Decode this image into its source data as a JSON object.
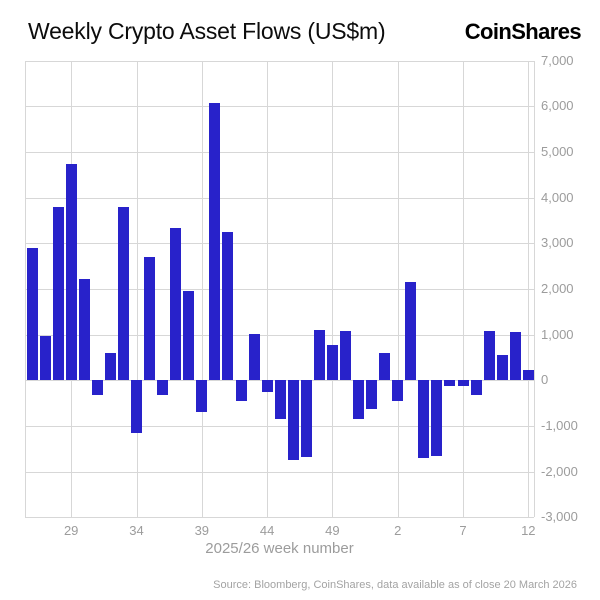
{
  "page": {
    "title": "Weekly Crypto Asset Flows (US$m)",
    "logo": "CoinShares",
    "source": "Source: Bloomberg, CoinShares, data available as of close 20 March 2026"
  },
  "chart_data": {
    "type": "bar",
    "title": "Weekly Crypto Asset Flows (US$m)",
    "xlabel": "2025/26 week number",
    "ylabel": "",
    "ylim": [
      -3000,
      7000
    ],
    "grid": true,
    "legend_position": "none",
    "bar_color": "#2822ca",
    "gridline_color": "#d7d7d7",
    "tick_label_color": "#9c9c9c",
    "weeks": [
      26,
      27,
      28,
      29,
      30,
      31,
      32,
      33,
      34,
      35,
      36,
      37,
      38,
      39,
      40,
      41,
      42,
      43,
      44,
      45,
      46,
      47,
      48,
      49,
      50,
      51,
      52,
      1,
      2,
      3,
      4,
      5,
      6,
      7,
      8,
      9,
      10,
      11,
      12
    ],
    "values": [
      2900,
      980,
      3800,
      4750,
      2210,
      -320,
      590,
      3800,
      -1150,
      2710,
      -320,
      3340,
      1950,
      -700,
      6080,
      3260,
      -450,
      1010,
      -250,
      -850,
      -1750,
      -1690,
      1110,
      770,
      1090,
      -840,
      -640,
      590,
      -460,
      2160,
      -1710,
      -1660,
      -130,
      -130,
      -330,
      1080,
      550,
      1070,
      230
    ],
    "yticks": [
      {
        "v": 7000,
        "label": "7,000"
      },
      {
        "v": 6000,
        "label": "6,000"
      },
      {
        "v": 5000,
        "label": "5,000"
      },
      {
        "v": 4000,
        "label": "4,000"
      },
      {
        "v": 3000,
        "label": "3,000"
      },
      {
        "v": 2000,
        "label": "2,000"
      },
      {
        "v": 1000,
        "label": "1,000"
      },
      {
        "v": 0,
        "label": "0"
      },
      {
        "v": -1000,
        "label": "-1,000"
      },
      {
        "v": -2000,
        "label": "-2,000"
      },
      {
        "v": -3000,
        "label": "-3,000"
      }
    ],
    "xticks": [
      {
        "index": 3,
        "label": "29"
      },
      {
        "index": 8,
        "label": "34"
      },
      {
        "index": 13,
        "label": "39"
      },
      {
        "index": 18,
        "label": "44"
      },
      {
        "index": 23,
        "label": "49"
      },
      {
        "index": 28,
        "label": "2"
      },
      {
        "index": 33,
        "label": "7"
      },
      {
        "index": 38,
        "label": "12"
      }
    ]
  }
}
